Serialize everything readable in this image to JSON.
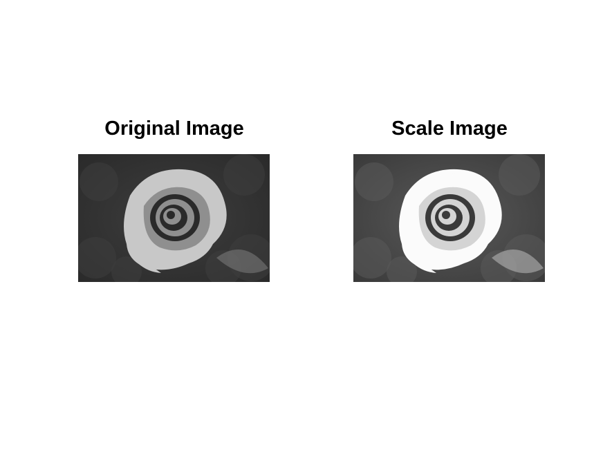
{
  "figure": {
    "panels": [
      {
        "title": "Original Image",
        "image": "rose-grayscale-photo",
        "tone": {
          "background": "#3e3e3e",
          "petal_light": "#c8c8c8",
          "petal_mid": "#8f8f8f",
          "center_dark": "#2a2a2a"
        }
      },
      {
        "title": "Scale Image",
        "image": "rose-grayscale-photo-scaled-brighter",
        "tone": {
          "background": "#5a5a5a",
          "petal_light": "#fbfbfb",
          "petal_mid": "#d4d4d4",
          "center_dark": "#3a3a3a"
        }
      }
    ]
  }
}
